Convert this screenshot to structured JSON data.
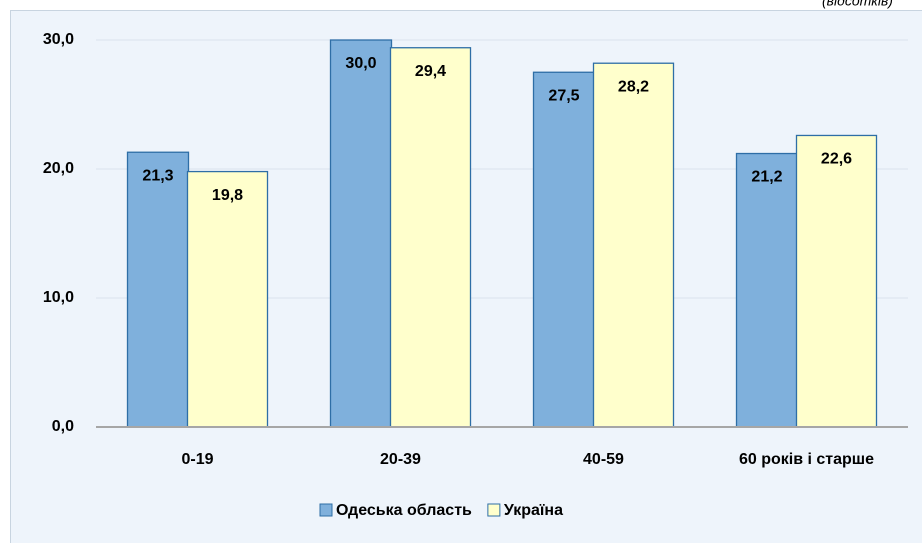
{
  "chart_data": {
    "type": "bar",
    "annotation": "(відсотків)",
    "categories": [
      "0-19",
      "20-39",
      "40-59",
      "60 років і старше"
    ],
    "series": [
      {
        "name": "Одеська область",
        "color": "#7fb0dc",
        "values": [
          21.3,
          30.0,
          27.5,
          21.2
        ],
        "value_labels": [
          "21,3",
          "30,0",
          "27,5",
          "21,2"
        ]
      },
      {
        "name": "Україна",
        "color": "#ffffcc",
        "values": [
          19.8,
          29.4,
          28.2,
          22.6
        ],
        "value_labels": [
          "19,8",
          "29,4",
          "28,2",
          "22,6"
        ]
      }
    ],
    "ylim": [
      0,
      30
    ],
    "yticks": [
      {
        "value": 0,
        "label": "0,0"
      },
      {
        "value": 10,
        "label": "10,0"
      },
      {
        "value": 20,
        "label": "20,0"
      },
      {
        "value": 30,
        "label": "30,0"
      }
    ],
    "grid": true,
    "legend": "bottom"
  }
}
